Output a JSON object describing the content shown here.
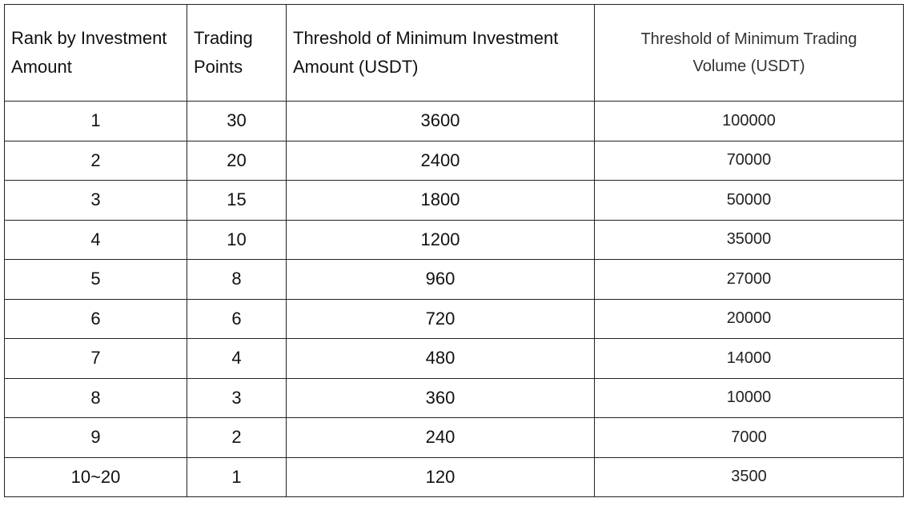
{
  "table": {
    "header": [
      "Rank by Investment Amount",
      "Trading Points",
      "Threshold of Minimum Investment Amount (USDT)",
      "Threshold of Minimum Trading Volume (USDT)"
    ],
    "rows": [
      [
        1,
        30,
        3600,
        100000
      ],
      [
        2,
        20,
        2400,
        70000
      ],
      [
        3,
        15,
        1800,
        50000
      ],
      [
        4,
        10,
        1200,
        35000
      ],
      [
        5,
        8,
        960,
        27000
      ],
      [
        6,
        6,
        720,
        20000
      ],
      [
        7,
        4,
        480,
        14000
      ],
      [
        8,
        3,
        360,
        10000
      ],
      [
        9,
        2,
        240,
        7000
      ],
      [
        "10~20",
        1,
        120,
        3500
      ]
    ]
  }
}
